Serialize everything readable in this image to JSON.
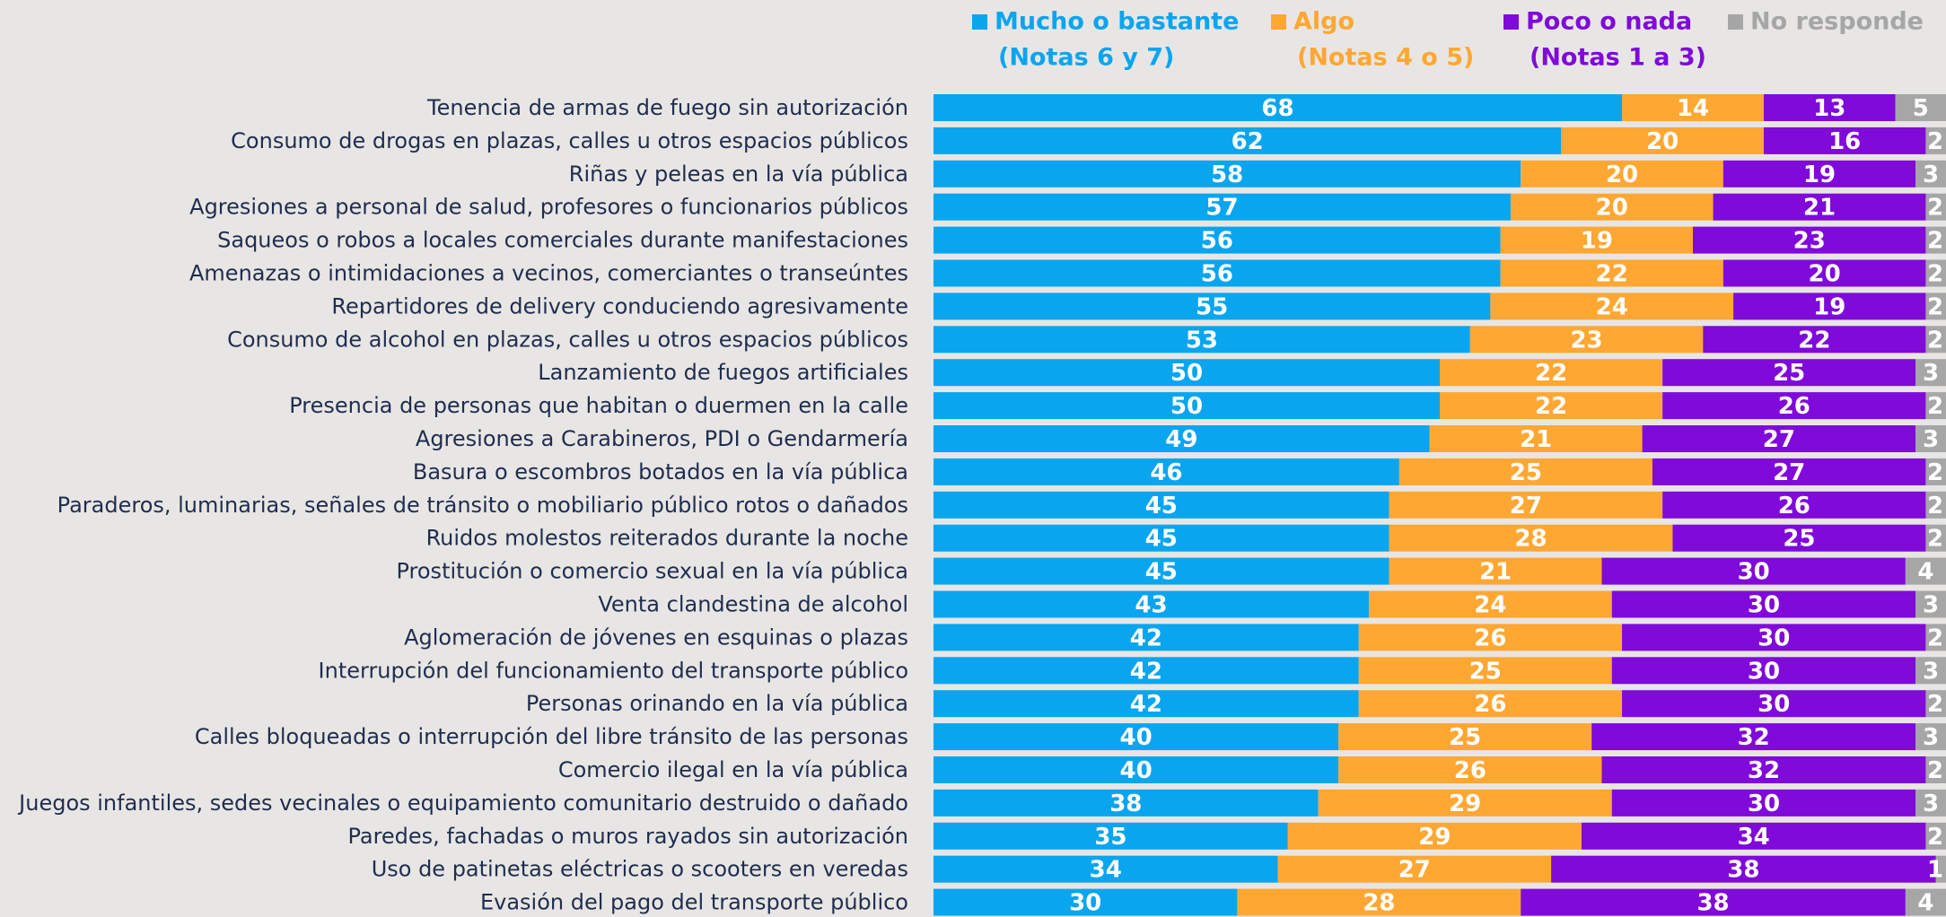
{
  "chart_data": {
    "type": "stacked_barh",
    "categories": [
      "Tenencia de armas de fuego sin autorización",
      "Consumo de drogas en plazas, calles u otros espacios públicos",
      "Riñas y peleas en la vía pública",
      "Agresiones a personal de salud, profesores o funcionarios públicos",
      "Saqueos o robos a locales comerciales durante manifestaciones",
      "Amenazas o intimidaciones a vecinos, comerciantes o transeúntes",
      "Repartidores de delivery conduciendo agresivamente",
      "Consumo de alcohol en plazas, calles u otros espacios públicos",
      "Lanzamiento de fuegos artificiales",
      "Presencia de personas que habitan o duermen en la calle",
      "Agresiones a Carabineros, PDI o Gendarmería",
      "Basura o escombros botados en la vía pública",
      "Paraderos, luminarias, señales de tránsito o mobiliario público rotos o dañados",
      "Ruidos molestos reiterados durante la noche",
      "Prostitución o comercio sexual en la vía pública",
      "Venta clandestina de alcohol",
      "Aglomeración de jóvenes en esquinas o plazas",
      "Interrupción del funcionamiento del transporte público",
      "Personas orinando en la vía pública",
      "Calles bloqueadas o interrupción del libre tránsito de las personas",
      "Comercio ilegal en la vía pública",
      "Juegos infantiles, sedes vecinales o equipamiento comunitario destruido o dañado",
      "Paredes, fachadas o muros rayados sin autorización",
      "Uso de patinetas eléctricas o scooters en veredas",
      "Evasión del pago del transporte público"
    ],
    "series": [
      {
        "name": "Mucho o bastante",
        "sublabel": "(Notas 6 y 7)",
        "color": "#0AA5EF",
        "values": [
          68,
          62,
          58,
          57,
          56,
          56,
          55,
          53,
          50,
          50,
          49,
          46,
          45,
          45,
          45,
          43,
          42,
          42,
          42,
          40,
          40,
          38,
          35,
          34,
          30
        ]
      },
      {
        "name": "Algo",
        "sublabel": "(Notas 4 o 5)",
        "color": "#FFA733",
        "values": [
          14,
          20,
          20,
          20,
          19,
          22,
          24,
          23,
          22,
          22,
          21,
          25,
          27,
          28,
          21,
          24,
          26,
          25,
          26,
          25,
          26,
          29,
          29,
          27,
          28
        ]
      },
      {
        "name": "Poco o nada",
        "sublabel": "(Notas 1 a 3)",
        "color": "#7F0AD9",
        "values": [
          13,
          16,
          19,
          21,
          23,
          20,
          19,
          22,
          25,
          26,
          27,
          27,
          26,
          25,
          30,
          30,
          30,
          30,
          30,
          32,
          32,
          30,
          34,
          38,
          38
        ]
      },
      {
        "name": "No responde",
        "color": "#A6A6A6",
        "values": [
          5,
          2,
          3,
          2,
          2,
          2,
          2,
          2,
          3,
          2,
          3,
          2,
          2,
          2,
          4,
          3,
          2,
          3,
          2,
          3,
          2,
          3,
          2,
          1,
          4
        ]
      }
    ],
    "xlim": [
      0,
      100
    ]
  }
}
